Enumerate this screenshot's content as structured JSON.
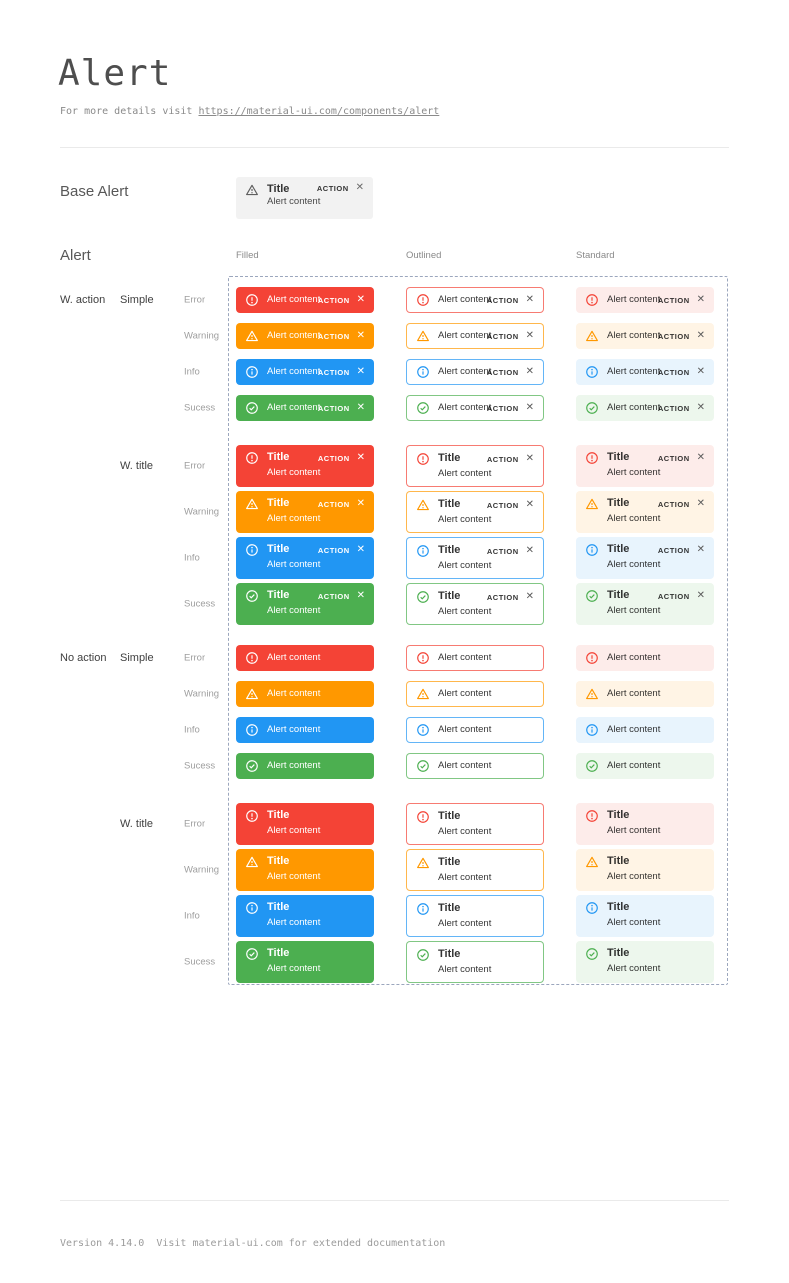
{
  "page": {
    "title": "Alert",
    "subtitle_prefix": "For more details visit ",
    "subtitle_link": "https://material-ui.com/components/alert",
    "footer": "Version 4.14.0  Visit material-ui.com for extended documentation"
  },
  "icons": {
    "close_glyph": "✕"
  },
  "base_alert": {
    "label": "Base Alert",
    "icon": "warning-triangle-icon",
    "title": "Title",
    "content": "Alert content",
    "action": "ACTION",
    "bg": "#f2f2f2"
  },
  "alert_section": {
    "label": "Alert",
    "variants": [
      {
        "key": "filled",
        "label": "Filled"
      },
      {
        "key": "outlined",
        "label": "Outlined"
      },
      {
        "key": "standard",
        "label": "Standard"
      }
    ],
    "groups": [
      {
        "action_label": "W. action",
        "mode_label": "Simple",
        "with_action": true,
        "with_title": false
      },
      {
        "action_label": "",
        "mode_label": "W. title",
        "with_action": true,
        "with_title": true
      },
      {
        "action_label": "No action",
        "mode_label": "Simple",
        "with_action": false,
        "with_title": false
      },
      {
        "action_label": "",
        "mode_label": "W. title",
        "with_action": false,
        "with_title": true
      }
    ],
    "severities": [
      {
        "key": "error",
        "label": "Error",
        "icon": "error-circle-icon",
        "color": "#f44336",
        "standard_bg": "#fdecea"
      },
      {
        "key": "warning",
        "label": "Warning",
        "icon": "warning-triangle-icon",
        "color": "#ff9800",
        "standard_bg": "#fff4e5"
      },
      {
        "key": "info",
        "label": "Info",
        "icon": "info-circle-icon",
        "color": "#2196f3",
        "standard_bg": "#e8f4fd"
      },
      {
        "key": "success",
        "label": "Sucess",
        "icon": "check-circle-icon",
        "color": "#4caf50",
        "standard_bg": "#edf7ed"
      }
    ],
    "alert_title": "Title",
    "alert_content": "Alert content",
    "action_label": "ACTION"
  }
}
